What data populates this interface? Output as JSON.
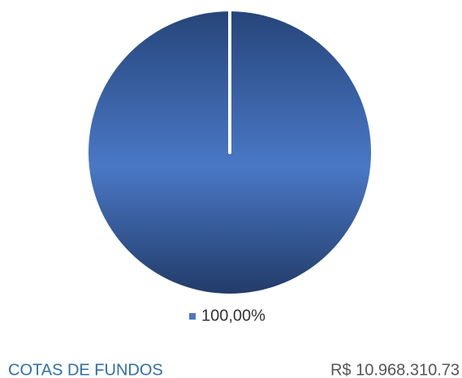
{
  "chart_data": {
    "type": "pie",
    "values": [
      100
    ],
    "value_labels": [
      "100,00%"
    ],
    "colors": [
      "#4a78c6"
    ]
  },
  "footer": {
    "label": "COTAS DE FUNDOS",
    "amount": "R$ 10.968.310.73"
  }
}
